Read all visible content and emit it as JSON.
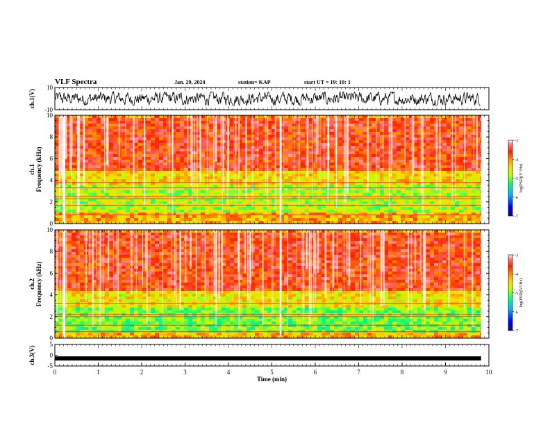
{
  "header": {
    "title": "VLF Spectra",
    "date": "Jan. 29, 2024",
    "station": "station= KAP",
    "start": "start UT =  19: 10: 1"
  },
  "colors": {
    "waveform": "#000000",
    "colormap": [
      "#0a0a78",
      "#0000ff",
      "#00b4ff",
      "#00ff80",
      "#bfff00",
      "#ffd700",
      "#ff8c00",
      "#ff2000",
      "#ff6060",
      "#ffffff"
    ]
  },
  "chart_data": [
    {
      "type": "line",
      "name": "ch1-waveform",
      "ylabel": "ch.1(V)",
      "ylim": [
        -10,
        10
      ],
      "yticks": [
        "10",
        "-10"
      ],
      "xlim": [
        0,
        10
      ],
      "data_extent_min": 9.82,
      "amplitude_typical": [
        -4,
        4
      ]
    },
    {
      "type": "heatmap",
      "name": "ch1-spectrogram",
      "ylabel_top": "ch.1",
      "ylabel": "Frequency (kHz)",
      "ylim": [
        0,
        10
      ],
      "yticks": [
        "0",
        "2",
        "4",
        "6",
        "8",
        "10"
      ],
      "xlim": [
        0,
        10
      ],
      "colorbar": {
        "label": "log(PSD)(V²/Hz)",
        "range": [
          -7,
          -3
        ],
        "ticks": [
          "-3",
          "-4",
          "-5",
          "-6",
          "-7"
        ]
      },
      "bands": [
        {
          "freq": [
            0,
            1.2
          ],
          "level": -4.2
        },
        {
          "freq": [
            1.2,
            3.6
          ],
          "level": -4.8
        },
        {
          "freq": [
            3.6,
            5.0
          ],
          "level": -4.4
        },
        {
          "freq": [
            5.0,
            10.0
          ],
          "level": -3.6
        }
      ],
      "horizontal_lines_khz": [
        0.8,
        1.7,
        2.3,
        2.5,
        3.3,
        3.8
      ],
      "gaps_min": [
        0.18,
        0.24,
        5.18,
        5.22
      ]
    },
    {
      "type": "heatmap",
      "name": "ch2-spectrogram",
      "ylabel_top": "ch.2",
      "ylabel": "Frequency (kHz)",
      "ylim": [
        0,
        10
      ],
      "yticks": [
        "0",
        "2",
        "4",
        "6",
        "8",
        "10"
      ],
      "xlim": [
        0,
        10
      ],
      "colorbar": {
        "label": "log(PSD)(V²/Hz)",
        "range": [
          -7,
          -3
        ],
        "ticks": [
          "-3",
          "-4",
          "-5",
          "-6",
          "-7"
        ]
      },
      "bands": [
        {
          "freq": [
            0,
            0.6
          ],
          "level": -4.2
        },
        {
          "freq": [
            0.6,
            3.0
          ],
          "level": -5.0
        },
        {
          "freq": [
            3.0,
            4.6
          ],
          "level": -4.5
        },
        {
          "freq": [
            4.6,
            10.0
          ],
          "level": -3.6
        }
      ],
      "horizontal_lines_khz": [
        0.6,
        1.2,
        2.0,
        2.2,
        3.2
      ],
      "gaps_min": [
        0.18,
        0.24,
        5.18,
        5.22
      ]
    },
    {
      "type": "line",
      "name": "ch3-waveform",
      "ylabel": "ch.3(V)",
      "ylim": [
        -5,
        5
      ],
      "yticks": [
        "5",
        "0",
        "-5"
      ],
      "xlim": [
        0,
        10
      ],
      "level": -1.5,
      "xlabel": "Time (min)",
      "xticks": [
        "0",
        "1",
        "2",
        "3",
        "4",
        "5",
        "6",
        "7",
        "8",
        "9",
        "10"
      ]
    }
  ]
}
